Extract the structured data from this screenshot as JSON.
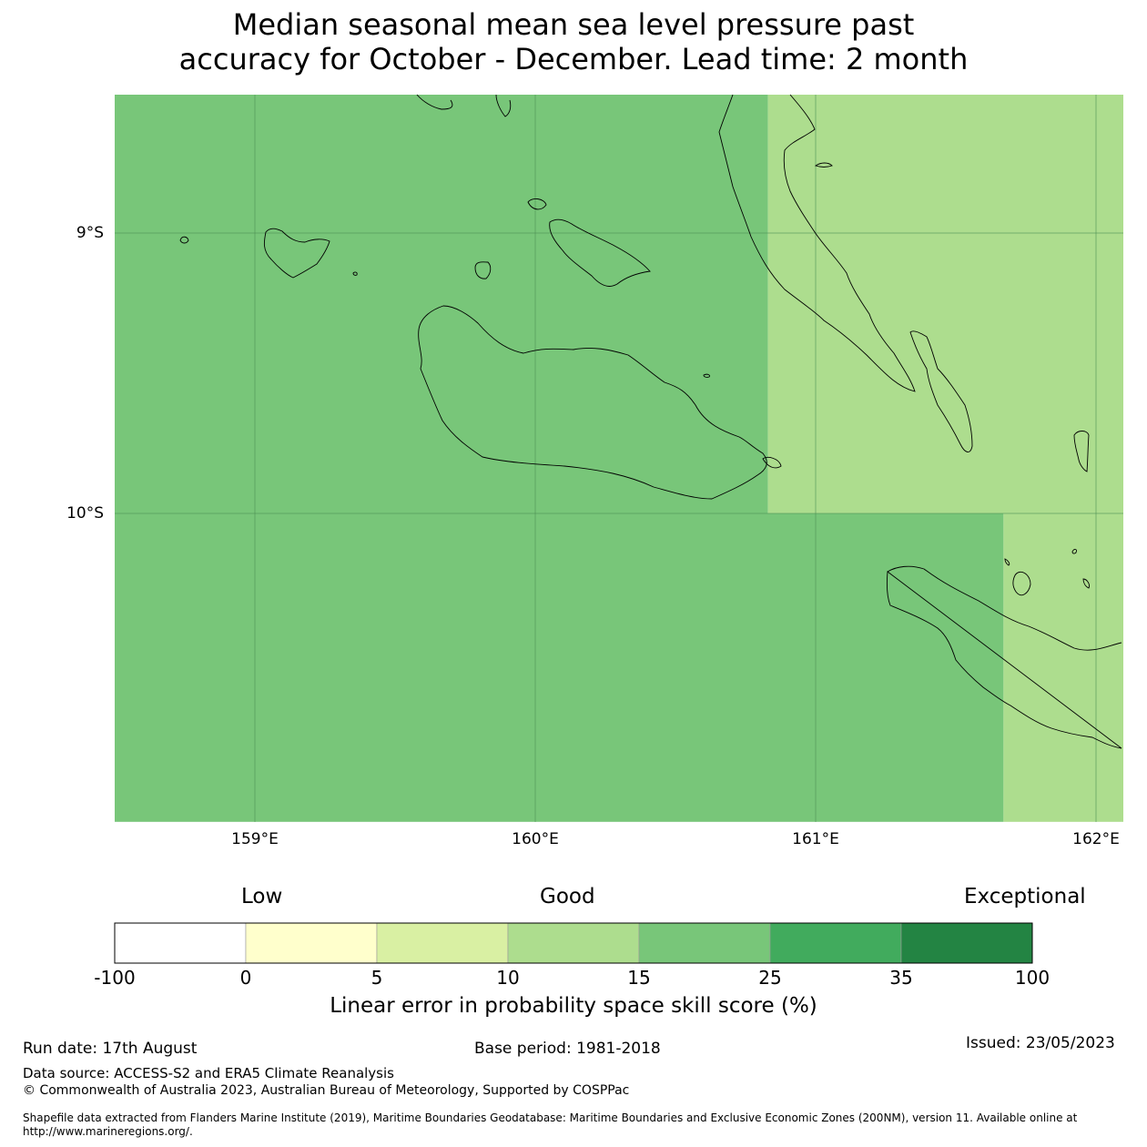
{
  "title": {
    "line1": "Median seasonal mean sea level pressure past",
    "line2": "accuracy for October - December. Lead time: 2 month"
  },
  "map": {
    "lat_labels": [
      "9°S",
      "10°S"
    ],
    "lon_labels": [
      "159°E",
      "160°E",
      "161°E",
      "162°E"
    ],
    "lat_extent": [
      -10.3,
      -8.5
    ],
    "lon_extent": [
      158.5,
      162.1
    ],
    "regions": [
      {
        "lon": [
          158.5,
          160.83
        ],
        "lat": [
          -10.0,
          -8.5
        ],
        "category": "15-25",
        "color": "#78c679"
      },
      {
        "lon": [
          160.83,
          162.1
        ],
        "lat": [
          -10.0,
          -8.5
        ],
        "category": "10-15",
        "color": "#addd8e"
      },
      {
        "lon": [
          158.5,
          161.67
        ],
        "lat": [
          -11.1,
          -10.0
        ],
        "category": "15-25",
        "color": "#78c679"
      },
      {
        "lon": [
          161.67,
          162.1
        ],
        "lat": [
          -11.1,
          -10.0
        ],
        "category": "10-15",
        "color": "#addd8e"
      }
    ]
  },
  "colorbar": {
    "category_labels": [
      "Low",
      "Good",
      "Exceptional"
    ],
    "ticks": [
      "-100",
      "0",
      "5",
      "10",
      "15",
      "25",
      "35",
      "100"
    ],
    "colors": [
      "#ffffff",
      "#ffffcc",
      "#d9f0a3",
      "#addd8e",
      "#78c679",
      "#41ab5d",
      "#238443"
    ],
    "title": "Linear error in probability space skill score (%)"
  },
  "footer": {
    "run_date": "Run date: 17th August",
    "base_period": "Base period: 1981-2018",
    "issued": "Issued: 23/05/2023",
    "data_source": "Data source: ACCESS-S2 and ERA5 Climate Reanalysis",
    "copyright": "© Commonwealth of Australia 2023, Australian Bureau of Meteorology, Supported by COSPPac",
    "shapefile_line1": "Shapefile data extracted from Flanders Marine Institute (2019), Maritime Boundaries Geodatabase: Maritime Boundaries and Exclusive Economic Zones (200NM), version 11. Available online at",
    "shapefile_line2": "http://www.marineregions.org/."
  }
}
